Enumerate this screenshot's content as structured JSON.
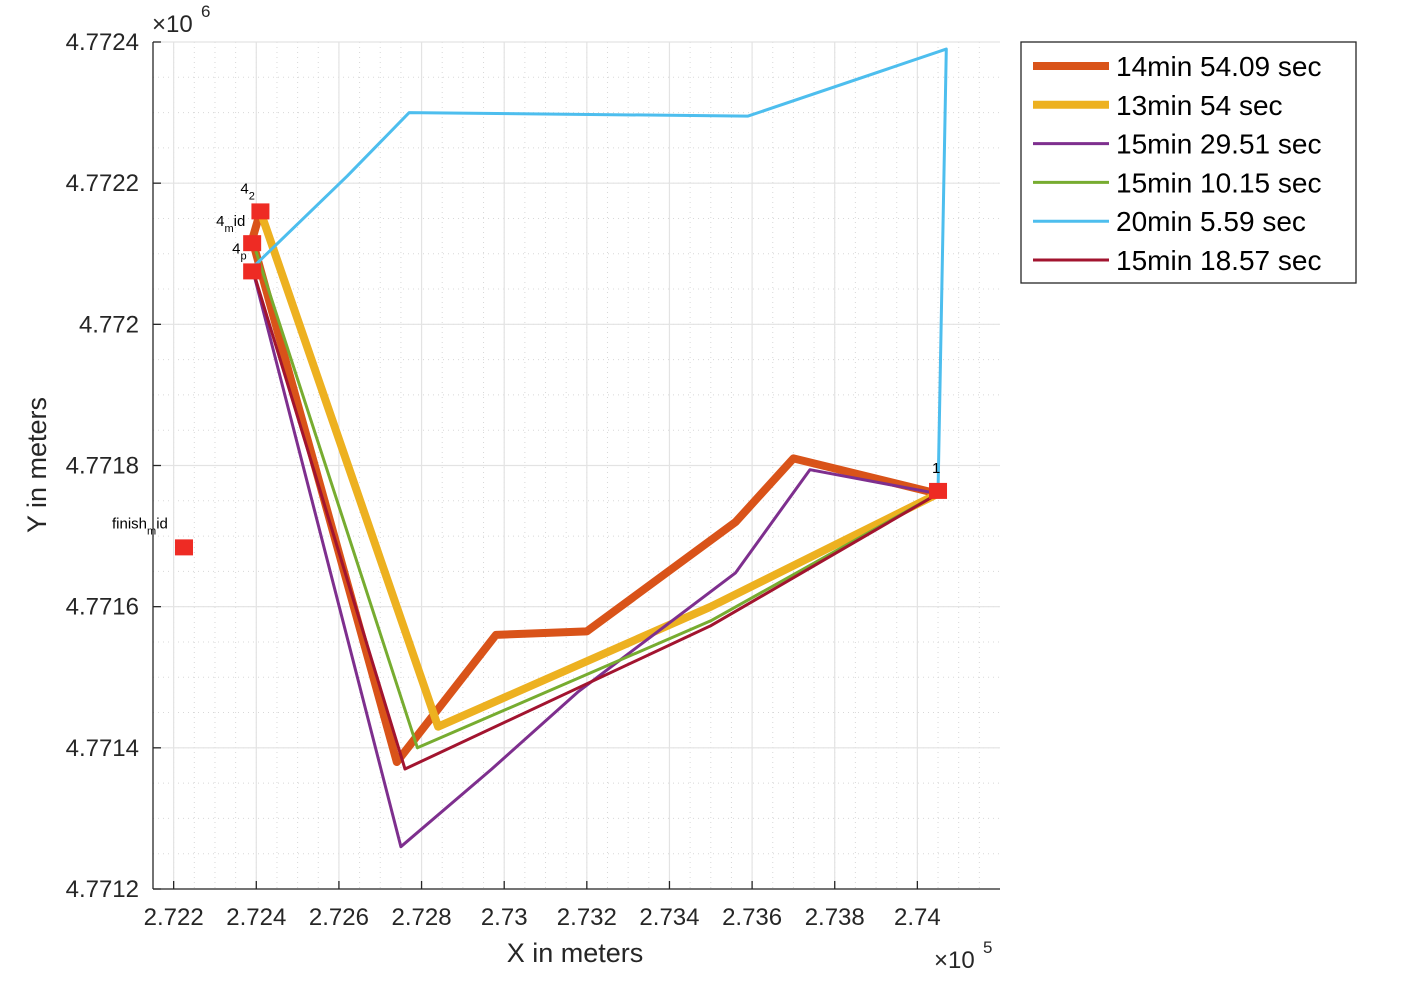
{
  "chart_data": {
    "type": "line",
    "xlabel": "X in meters",
    "ylabel": "Y in meters",
    "x_exponent_label": "×10",
    "x_exponent_power": "5",
    "y_exponent_label": "×10",
    "y_exponent_power": "6",
    "xlim": [
      2.7215,
      2.742
    ],
    "ylim": [
      4.7712,
      4.7724
    ],
    "xticks": [
      2.722,
      2.724,
      2.726,
      2.728,
      2.73,
      2.732,
      2.734,
      2.736,
      2.738,
      2.74
    ],
    "xtick_labels": [
      "2.722",
      "2.724",
      "2.726",
      "2.728",
      "2.73",
      "2.732",
      "2.734",
      "2.736",
      "2.738",
      "2.74"
    ],
    "yticks": [
      4.7712,
      4.7714,
      4.7716,
      4.7718,
      4.772,
      4.7722,
      4.7724
    ],
    "ytick_labels": [
      "4.7712",
      "4.7714",
      "4.7716",
      "4.7718",
      "4.772",
      "4.7722",
      "4.7724"
    ],
    "grid": true,
    "minor_grid": true,
    "legend_position": "outside-top-right",
    "series": [
      {
        "name": "14min 54.09 sec",
        "color": "#D95319",
        "width": 8,
        "x": [
          2.7241,
          2.7239,
          2.7274,
          2.7298,
          2.732,
          2.7356,
          2.737,
          2.7405
        ],
        "y": [
          4.77216,
          4.77212,
          4.77138,
          4.77156,
          4.771565,
          4.77172,
          4.77181,
          4.77176
        ]
      },
      {
        "name": "13min 54 sec",
        "color": "#EDB120",
        "width": 8,
        "x": [
          2.7241,
          2.7284,
          2.735,
          2.7405
        ],
        "y": [
          4.77216,
          4.77143,
          4.7716,
          4.77176
        ]
      },
      {
        "name": "15min 29.51 sec",
        "color": "#7E2F8E",
        "width": 3,
        "x": [
          2.7239,
          2.7275,
          2.7297,
          2.7318,
          2.7356,
          2.7374,
          2.7405
        ],
        "y": [
          4.77208,
          4.77126,
          4.77137,
          4.77148,
          4.771648,
          4.771794,
          4.77176
        ]
      },
      {
        "name": "15min 10.15 sec",
        "color": "#77AC30",
        "width": 3,
        "x": [
          2.7239,
          2.7279,
          2.735,
          2.7405
        ],
        "y": [
          4.77212,
          4.7714,
          4.77158,
          4.77176
        ]
      },
      {
        "name": "20min 5.59 sec",
        "color": "#4DBEEE",
        "width": 3,
        "x": [
          2.7239,
          2.7262,
          2.7277,
          2.7359,
          2.7407,
          2.7405
        ],
        "y": [
          4.77208,
          4.77221,
          4.7723,
          4.772295,
          4.77239,
          4.77176
        ]
      },
      {
        "name": "15min 18.57 sec",
        "color": "#A2142F",
        "width": 3,
        "x": [
          2.7239,
          2.7276,
          2.735,
          2.7405
        ],
        "y": [
          4.77208,
          4.77137,
          4.771573,
          4.77176
        ]
      }
    ],
    "markers": [
      {
        "x": 2.7241,
        "y": 4.77216,
        "label": "4",
        "sub": "2"
      },
      {
        "x": 2.7239,
        "y": 4.772115,
        "label": "4",
        "sub": "m",
        "tail": "id"
      },
      {
        "x": 2.7239,
        "y": 4.772075,
        "label": "4",
        "sub": "p"
      },
      {
        "x": 2.7405,
        "y": 4.771764,
        "label": "1"
      },
      {
        "x": 2.72225,
        "y": 4.771684,
        "label": "finish",
        "sub": "m",
        "tail": "id"
      }
    ],
    "marker_color": "#EE2B24"
  }
}
